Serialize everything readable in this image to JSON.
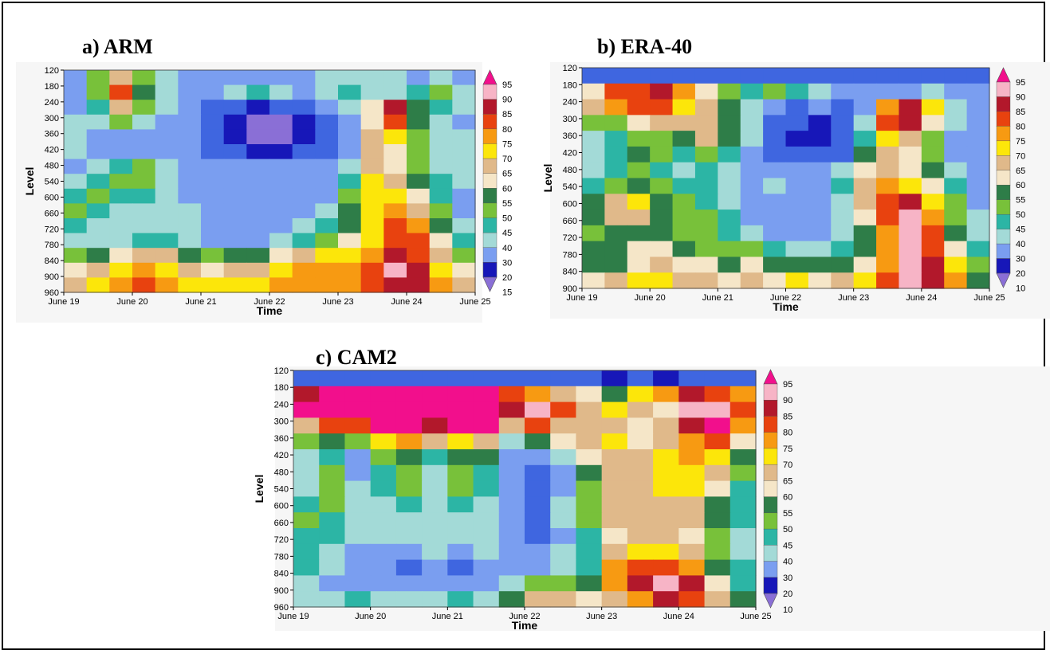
{
  "figure": {
    "panels": [
      {
        "id": "a",
        "title": "a)  ARM"
      },
      {
        "id": "b",
        "title": "b)  ERA-40"
      },
      {
        "id": "c",
        "title": "c)  CAM2"
      }
    ]
  },
  "chart_data": [
    {
      "type": "heatmap",
      "title": "a)  ARM",
      "xlabel": "Time",
      "ylabel": "Level",
      "x_ticks": [
        "June 19",
        "June 20",
        "June 21",
        "June 22",
        "June 23",
        "June 24",
        "June 25"
      ],
      "y_ticks": [
        "120",
        "180",
        "240",
        "300",
        "360",
        "420",
        "480",
        "540",
        "600",
        "660",
        "720",
        "780",
        "840",
        "900",
        "960"
      ],
      "colorbar_levels": [
        "95",
        "90",
        "85",
        "80",
        "75",
        "70",
        "65",
        "60",
        "55",
        "50",
        "45",
        "40",
        "30",
        "20",
        "15"
      ],
      "colorbar_colors": [
        "#f7b4c6",
        "#b2182b",
        "#e8420f",
        "#f79a12",
        "#fce60a",
        "#e0b98a",
        "#f5e6c8",
        "#2e7d48",
        "#78c13a",
        "#2cb5a5",
        "#a3dad7",
        "#7a9ef0",
        "#3f66e0",
        "#1717b8",
        "#8a6fd6"
      ],
      "values_sampled": [
        [
          40,
          55,
          70,
          55,
          45,
          40,
          40,
          40,
          40,
          40,
          40,
          45,
          45,
          45,
          45,
          40,
          45,
          40
        ],
        [
          40,
          55,
          85,
          60,
          45,
          40,
          40,
          45,
          50,
          45,
          40,
          45,
          50,
          45,
          45,
          50,
          55,
          45
        ],
        [
          40,
          50,
          70,
          55,
          45,
          40,
          35,
          30,
          25,
          30,
          30,
          40,
          45,
          65,
          90,
          60,
          50,
          45
        ],
        [
          45,
          45,
          55,
          45,
          40,
          40,
          30,
          20,
          15,
          15,
          20,
          30,
          40,
          65,
          85,
          60,
          45,
          40
        ],
        [
          45,
          40,
          40,
          40,
          40,
          40,
          30,
          20,
          15,
          15,
          20,
          30,
          40,
          70,
          75,
          55,
          45,
          45
        ],
        [
          45,
          40,
          40,
          40,
          40,
          40,
          35,
          30,
          25,
          25,
          30,
          35,
          40,
          70,
          65,
          55,
          45,
          45
        ],
        [
          40,
          45,
          50,
          55,
          45,
          40,
          40,
          40,
          40,
          40,
          40,
          40,
          45,
          70,
          65,
          55,
          45,
          45
        ],
        [
          45,
          50,
          55,
          55,
          45,
          40,
          40,
          40,
          40,
          40,
          40,
          40,
          50,
          75,
          70,
          60,
          50,
          45
        ],
        [
          50,
          55,
          50,
          50,
          45,
          40,
          40,
          40,
          40,
          40,
          40,
          40,
          55,
          75,
          75,
          65,
          50,
          40
        ],
        [
          55,
          50,
          45,
          45,
          45,
          45,
          40,
          40,
          40,
          40,
          40,
          45,
          60,
          75,
          80,
          70,
          55,
          40
        ],
        [
          50,
          45,
          45,
          45,
          45,
          45,
          40,
          40,
          40,
          40,
          45,
          50,
          60,
          75,
          85,
          80,
          60,
          45
        ],
        [
          45,
          45,
          45,
          50,
          50,
          45,
          40,
          40,
          40,
          45,
          50,
          55,
          65,
          75,
          85,
          85,
          65,
          50
        ],
        [
          55,
          60,
          65,
          70,
          70,
          60,
          55,
          60,
          60,
          65,
          70,
          75,
          75,
          80,
          90,
          85,
          70,
          55
        ],
        [
          65,
          70,
          75,
          80,
          75,
          70,
          65,
          70,
          70,
          75,
          80,
          80,
          80,
          85,
          95,
          90,
          75,
          65
        ],
        [
          70,
          75,
          80,
          85,
          80,
          75,
          75,
          75,
          75,
          80,
          80,
          80,
          80,
          85,
          90,
          90,
          80,
          70
        ]
      ]
    },
    {
      "type": "heatmap",
      "title": "b)  ERA-40",
      "xlabel": "Time",
      "ylabel": "Level",
      "x_ticks": [
        "June 19",
        "June 20",
        "June 21",
        "June 22",
        "June 23",
        "June 24",
        "June 25"
      ],
      "y_ticks": [
        "120",
        "180",
        "240",
        "300",
        "360",
        "420",
        "480",
        "540",
        "600",
        "660",
        "720",
        "780",
        "840",
        "900"
      ],
      "colorbar_levels": [
        "95",
        "90",
        "85",
        "80",
        "75",
        "70",
        "65",
        "60",
        "55",
        "50",
        "45",
        "40",
        "30",
        "20",
        "10"
      ],
      "colorbar_colors": [
        "#f7b4c6",
        "#b2182b",
        "#e8420f",
        "#f79a12",
        "#fce60a",
        "#e0b98a",
        "#f5e6c8",
        "#2e7d48",
        "#78c13a",
        "#2cb5a5",
        "#a3dad7",
        "#7a9ef0",
        "#3f66e0",
        "#1717b8",
        "#8a6fd6"
      ],
      "values_sampled": [
        [
          30,
          30,
          30,
          30,
          30,
          30,
          30,
          30,
          30,
          30,
          30,
          30,
          30,
          30,
          30,
          30,
          30,
          30
        ],
        [
          65,
          85,
          85,
          90,
          80,
          65,
          55,
          50,
          55,
          50,
          45,
          40,
          40,
          40,
          40,
          45,
          40,
          40
        ],
        [
          70,
          80,
          85,
          85,
          75,
          70,
          60,
          45,
          40,
          35,
          40,
          35,
          40,
          80,
          90,
          75,
          45,
          40
        ],
        [
          55,
          55,
          65,
          70,
          70,
          70,
          60,
          45,
          35,
          30,
          20,
          30,
          45,
          85,
          90,
          65,
          45,
          40
        ],
        [
          45,
          50,
          55,
          55,
          60,
          70,
          60,
          45,
          35,
          25,
          20,
          35,
          50,
          75,
          70,
          55,
          40,
          40
        ],
        [
          45,
          50,
          60,
          55,
          50,
          55,
          50,
          40,
          35,
          30,
          30,
          35,
          60,
          70,
          65,
          55,
          40,
          40
        ],
        [
          45,
          50,
          55,
          50,
          45,
          50,
          45,
          40,
          40,
          40,
          40,
          45,
          65,
          70,
          65,
          60,
          45,
          40
        ],
        [
          50,
          55,
          60,
          55,
          50,
          50,
          45,
          40,
          45,
          40,
          40,
          50,
          70,
          80,
          75,
          65,
          50,
          40
        ],
        [
          60,
          70,
          75,
          60,
          55,
          50,
          45,
          40,
          40,
          40,
          40,
          45,
          70,
          85,
          90,
          75,
          55,
          40
        ],
        [
          60,
          70,
          70,
          60,
          55,
          55,
          50,
          40,
          40,
          40,
          40,
          45,
          65,
          85,
          95,
          80,
          55,
          45
        ],
        [
          55,
          60,
          60,
          60,
          55,
          55,
          50,
          45,
          40,
          40,
          40,
          45,
          60,
          80,
          95,
          85,
          60,
          45
        ],
        [
          60,
          60,
          65,
          65,
          60,
          55,
          55,
          55,
          50,
          45,
          45,
          50,
          60,
          80,
          95,
          85,
          65,
          50
        ],
        [
          60,
          60,
          65,
          70,
          65,
          65,
          60,
          65,
          60,
          60,
          60,
          60,
          65,
          80,
          95,
          90,
          75,
          55
        ],
        [
          65,
          70,
          75,
          75,
          70,
          70,
          65,
          70,
          65,
          75,
          65,
          70,
          75,
          85,
          95,
          90,
          80,
          60
        ]
      ]
    },
    {
      "type": "heatmap",
      "title": "c)  CAM2",
      "xlabel": "Time",
      "ylabel": "Level",
      "x_ticks": [
        "June 19",
        "June 20",
        "June 21",
        "June 22",
        "June 23",
        "June 24",
        "June 25"
      ],
      "y_ticks": [
        "120",
        "180",
        "240",
        "300",
        "360",
        "420",
        "480",
        "540",
        "600",
        "660",
        "720",
        "780",
        "840",
        "900",
        "960"
      ],
      "colorbar_levels": [
        "95",
        "90",
        "85",
        "80",
        "75",
        "70",
        "65",
        "60",
        "55",
        "50",
        "45",
        "40",
        "30",
        "20",
        "10"
      ],
      "colorbar_colors": [
        "#f7b4c6",
        "#b2182b",
        "#e8420f",
        "#f79a12",
        "#fce60a",
        "#e0b98a",
        "#f5e6c8",
        "#2e7d48",
        "#78c13a",
        "#2cb5a5",
        "#a3dad7",
        "#7a9ef0",
        "#3f66e0",
        "#1717b8",
        "#8a6fd6"
      ],
      "values_sampled": [
        [
          30,
          30,
          30,
          30,
          30,
          30,
          30,
          30,
          30,
          30,
          30,
          30,
          25,
          30,
          25,
          30,
          30,
          30
        ],
        [
          90,
          96,
          96,
          96,
          96,
          96,
          96,
          96,
          85,
          80,
          70,
          65,
          60,
          75,
          80,
          90,
          85,
          80
        ],
        [
          96,
          96,
          96,
          96,
          96,
          96,
          96,
          96,
          90,
          95,
          85,
          70,
          75,
          70,
          65,
          95,
          95,
          85
        ],
        [
          70,
          85,
          85,
          96,
          96,
          90,
          96,
          96,
          70,
          85,
          70,
          70,
          70,
          65,
          70,
          90,
          96,
          80
        ],
        [
          55,
          60,
          55,
          75,
          80,
          70,
          75,
          70,
          45,
          60,
          65,
          70,
          75,
          65,
          70,
          80,
          85,
          65
        ],
        [
          45,
          50,
          40,
          55,
          60,
          50,
          60,
          60,
          40,
          40,
          45,
          65,
          70,
          70,
          75,
          80,
          75,
          60
        ],
        [
          45,
          55,
          40,
          50,
          55,
          45,
          55,
          50,
          40,
          35,
          40,
          60,
          70,
          70,
          75,
          75,
          70,
          55
        ],
        [
          45,
          55,
          45,
          50,
          55,
          45,
          55,
          50,
          40,
          35,
          40,
          55,
          70,
          70,
          75,
          75,
          65,
          50
        ],
        [
          50,
          55,
          45,
          45,
          50,
          45,
          50,
          45,
          40,
          35,
          45,
          55,
          70,
          70,
          70,
          70,
          60,
          50
        ],
        [
          55,
          50,
          45,
          45,
          45,
          45,
          45,
          45,
          40,
          35,
          45,
          55,
          70,
          70,
          70,
          70,
          60,
          50
        ],
        [
          50,
          50,
          45,
          45,
          45,
          45,
          45,
          45,
          40,
          35,
          40,
          50,
          65,
          70,
          70,
          65,
          55,
          45
        ],
        [
          50,
          45,
          40,
          40,
          40,
          45,
          40,
          45,
          40,
          40,
          45,
          50,
          70,
          75,
          75,
          70,
          55,
          45
        ],
        [
          50,
          45,
          40,
          40,
          35,
          40,
          35,
          40,
          40,
          40,
          45,
          50,
          80,
          85,
          85,
          80,
          60,
          50
        ],
        [
          45,
          40,
          40,
          40,
          40,
          40,
          40,
          40,
          45,
          55,
          55,
          60,
          80,
          90,
          95,
          90,
          65,
          50
        ],
        [
          45,
          45,
          50,
          45,
          45,
          45,
          50,
          45,
          60,
          70,
          70,
          65,
          70,
          80,
          90,
          85,
          70,
          60
        ]
      ]
    }
  ]
}
